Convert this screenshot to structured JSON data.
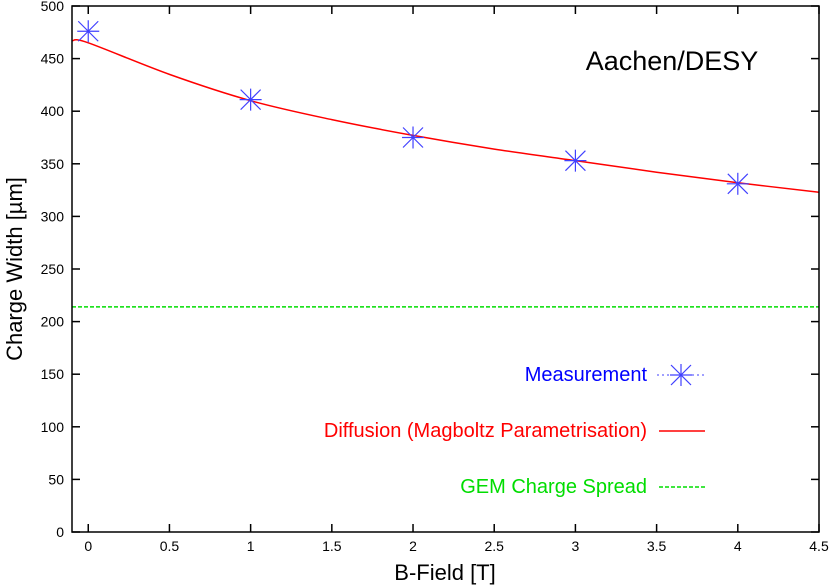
{
  "chart_data": {
    "type": "line",
    "title": "",
    "annotation": "Aachen/DESY",
    "xlabel": "B-Field [T]",
    "ylabel": "Charge Width [µm]",
    "xlim": [
      -0.1,
      4.5
    ],
    "ylim": [
      0,
      500
    ],
    "xticks": [
      "0",
      "0.5",
      "1",
      "1.5",
      "2",
      "2.5",
      "3",
      "3.5",
      "4",
      "4.5"
    ],
    "xtick_values": [
      0,
      0.5,
      1,
      1.5,
      2,
      2.5,
      3,
      3.5,
      4,
      4.5
    ],
    "yticks": [
      "0",
      "50",
      "100",
      "150",
      "200",
      "250",
      "300",
      "350",
      "400",
      "450",
      "500"
    ],
    "ytick_values": [
      0,
      50,
      100,
      150,
      200,
      250,
      300,
      350,
      400,
      450,
      500
    ],
    "grid": false,
    "legend_placement": "bottom-right",
    "series": [
      {
        "name": "Measurement",
        "kind": "points",
        "marker": "asterisk",
        "color": "#4040ff",
        "x": [
          0,
          1,
          2,
          3,
          4
        ],
        "y": [
          476,
          411,
          375,
          353,
          331
        ]
      },
      {
        "name": "Diffusion (Magboltz Parametrisation)",
        "kind": "line",
        "color": "#ff0000",
        "x": [
          -0.1,
          0,
          0.5,
          1,
          1.5,
          2,
          2.5,
          3,
          3.5,
          4,
          4.5
        ],
        "y": [
          467,
          465,
          435,
          410,
          392,
          377,
          364,
          353,
          342,
          332,
          323
        ]
      },
      {
        "name": "GEM Charge Spread",
        "kind": "dashed-line",
        "color": "#00dd00",
        "x": [
          -0.1,
          4.5
        ],
        "y": [
          214,
          214
        ]
      }
    ],
    "legend_text_colors": [
      "#0000ff",
      "#ff0000",
      "#00dd00"
    ]
  }
}
